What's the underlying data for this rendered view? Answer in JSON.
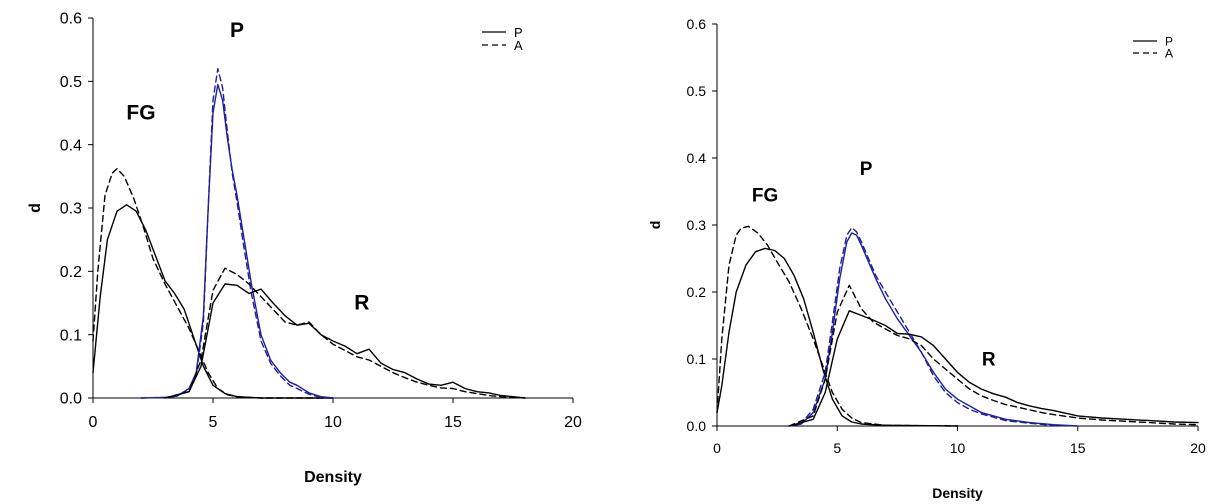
{
  "chart_data": [
    {
      "type": "line",
      "xlabel": "Density",
      "ylabel": "d",
      "xlim": [
        0,
        20
      ],
      "ylim": [
        0,
        0.6
      ],
      "xticks": [
        "0",
        "5",
        "10",
        "15",
        "20"
      ],
      "yticks": [
        "0.0",
        "0.1",
        "0.2",
        "0.3",
        "0.4",
        "0.5",
        "0.6"
      ],
      "grid": false,
      "legend_position": "top-right",
      "legend": [
        {
          "label": "P",
          "style": "solid"
        },
        {
          "label": "A",
          "style": "dashed"
        }
      ],
      "annotations": [
        {
          "text": "FG",
          "x": 2.0,
          "y": 0.44
        },
        {
          "text": "P",
          "x": 6.0,
          "y": 0.57
        },
        {
          "text": "R",
          "x": 11.2,
          "y": 0.14
        }
      ],
      "series": [
        {
          "group": "FG",
          "style": "solid",
          "color": "#000000",
          "x": [
            0,
            0.3,
            0.6,
            1.0,
            1.4,
            1.8,
            2.2,
            2.6,
            3.0,
            3.4,
            3.8,
            4.2,
            4.6,
            5.0,
            5.5,
            6.0,
            7.0,
            10.0
          ],
          "y": [
            0.04,
            0.16,
            0.25,
            0.295,
            0.305,
            0.295,
            0.265,
            0.225,
            0.185,
            0.165,
            0.14,
            0.095,
            0.05,
            0.02,
            0.007,
            0.002,
            0.0,
            0.0
          ]
        },
        {
          "group": "FG",
          "style": "dashed",
          "color": "#000000",
          "x": [
            0,
            0.2,
            0.5,
            0.8,
            1.0,
            1.3,
            1.7,
            2.1,
            2.5,
            3.0,
            3.5,
            4.0,
            4.4,
            4.8,
            5.2,
            5.6,
            6.0,
            7.0,
            10.0
          ],
          "y": [
            0.09,
            0.2,
            0.32,
            0.355,
            0.362,
            0.35,
            0.315,
            0.27,
            0.22,
            0.18,
            0.145,
            0.11,
            0.075,
            0.04,
            0.015,
            0.005,
            0.002,
            0.0,
            0.0
          ]
        },
        {
          "group": "P",
          "style": "solid",
          "color": "#1f1f9e",
          "x": [
            2.0,
            3.0,
            3.5,
            4.0,
            4.3,
            4.6,
            4.8,
            5.0,
            5.2,
            5.4,
            5.6,
            5.8,
            6.0,
            6.3,
            6.6,
            7.0,
            7.4,
            7.8,
            8.2,
            8.5,
            9.0,
            9.5,
            10.0
          ],
          "y": [
            0.0,
            0.001,
            0.003,
            0.015,
            0.04,
            0.13,
            0.3,
            0.45,
            0.495,
            0.47,
            0.41,
            0.36,
            0.32,
            0.25,
            0.18,
            0.1,
            0.06,
            0.04,
            0.025,
            0.02,
            0.008,
            0.002,
            0.0
          ]
        },
        {
          "group": "P",
          "style": "dashed",
          "color": "#1f1f9e",
          "x": [
            2.0,
            3.0,
            3.5,
            4.0,
            4.3,
            4.6,
            4.8,
            5.0,
            5.2,
            5.4,
            5.6,
            5.8,
            6.0,
            6.3,
            6.6,
            7.0,
            7.4,
            7.8,
            8.2,
            8.5,
            9.0,
            9.5,
            10.0
          ],
          "y": [
            0.0,
            0.001,
            0.003,
            0.013,
            0.035,
            0.12,
            0.3,
            0.47,
            0.52,
            0.49,
            0.42,
            0.355,
            0.31,
            0.235,
            0.165,
            0.09,
            0.055,
            0.035,
            0.02,
            0.015,
            0.006,
            0.001,
            0.0
          ]
        },
        {
          "group": "R",
          "style": "solid",
          "color": "#000000",
          "x": [
            3.0,
            4.0,
            4.5,
            5.0,
            5.5,
            6.0,
            6.5,
            7.0,
            7.5,
            8.0,
            8.5,
            9.0,
            9.5,
            10.0,
            10.5,
            11.0,
            11.5,
            12.0,
            12.5,
            13.0,
            13.5,
            14.0,
            14.5,
            15.0,
            15.5,
            16.0,
            16.5,
            17.0,
            17.5,
            18.0
          ],
          "y": [
            0.0,
            0.01,
            0.05,
            0.15,
            0.18,
            0.178,
            0.165,
            0.172,
            0.15,
            0.13,
            0.115,
            0.118,
            0.1,
            0.09,
            0.082,
            0.07,
            0.077,
            0.055,
            0.045,
            0.04,
            0.03,
            0.022,
            0.02,
            0.025,
            0.015,
            0.01,
            0.008,
            0.004,
            0.002,
            0.0
          ]
        },
        {
          "group": "R",
          "style": "dashed",
          "color": "#000000",
          "x": [
            3.0,
            4.0,
            4.5,
            5.0,
            5.5,
            6.0,
            6.5,
            7.0,
            7.5,
            8.0,
            8.5,
            9.0,
            9.5,
            10.0,
            10.5,
            11.0,
            11.5,
            12.0,
            12.5,
            13.0,
            13.5,
            14.0,
            14.5,
            15.0,
            15.5,
            16.0,
            16.5,
            17.0,
            17.5,
            18.0
          ],
          "y": [
            0.0,
            0.01,
            0.06,
            0.17,
            0.205,
            0.195,
            0.18,
            0.16,
            0.14,
            0.12,
            0.115,
            0.12,
            0.1,
            0.085,
            0.075,
            0.065,
            0.06,
            0.05,
            0.04,
            0.032,
            0.025,
            0.02,
            0.016,
            0.015,
            0.01,
            0.007,
            0.004,
            0.002,
            0.001,
            0.0
          ]
        }
      ]
    },
    {
      "type": "line",
      "xlabel": "Density",
      "ylabel": "d",
      "xlim": [
        0,
        20
      ],
      "ylim": [
        0,
        0.6
      ],
      "xticks": [
        "0",
        "5",
        "10",
        "15",
        "20"
      ],
      "yticks": [
        "0.0",
        "0.1",
        "0.2",
        "0.3",
        "0.4",
        "0.5",
        "0.6"
      ],
      "grid": false,
      "legend_position": "top-right",
      "legend": [
        {
          "label": "P",
          "style": "solid"
        },
        {
          "label": "A",
          "style": "dashed"
        }
      ],
      "annotations": [
        {
          "text": "FG",
          "x": 2.0,
          "y": 0.335
        },
        {
          "text": "P",
          "x": 6.2,
          "y": 0.375
        },
        {
          "text": "R",
          "x": 11.3,
          "y": 0.09
        }
      ],
      "series": [
        {
          "group": "FG",
          "style": "solid",
          "color": "#000000",
          "x": [
            0,
            0.2,
            0.5,
            0.8,
            1.2,
            1.6,
            2.0,
            2.4,
            2.8,
            3.2,
            3.6,
            4.0,
            4.4,
            4.8,
            5.2,
            5.6,
            6.0,
            7.0,
            10.0
          ],
          "y": [
            0.02,
            0.06,
            0.14,
            0.2,
            0.24,
            0.26,
            0.265,
            0.262,
            0.25,
            0.225,
            0.19,
            0.14,
            0.085,
            0.04,
            0.015,
            0.006,
            0.003,
            0.001,
            0.0
          ]
        },
        {
          "group": "FG",
          "style": "dashed",
          "color": "#000000",
          "x": [
            0,
            0.2,
            0.5,
            0.8,
            1.0,
            1.3,
            1.7,
            2.1,
            2.5,
            3.0,
            3.5,
            4.0,
            4.4,
            4.8,
            5.2,
            5.6,
            6.0,
            7.0,
            10.0
          ],
          "y": [
            0.02,
            0.13,
            0.24,
            0.285,
            0.295,
            0.298,
            0.288,
            0.27,
            0.245,
            0.215,
            0.175,
            0.13,
            0.09,
            0.05,
            0.025,
            0.012,
            0.005,
            0.001,
            0.0
          ]
        },
        {
          "group": "P",
          "style": "solid",
          "color": "#1f1f9e",
          "x": [
            3.0,
            3.5,
            4.0,
            4.5,
            4.8,
            5.1,
            5.4,
            5.6,
            5.8,
            6.0,
            6.3,
            6.6,
            7.0,
            7.5,
            8.0,
            8.5,
            9.0,
            9.5,
            10.0,
            10.5,
            11.0,
            12.0,
            13.0,
            14.0,
            15.0
          ],
          "y": [
            0.0,
            0.003,
            0.02,
            0.07,
            0.14,
            0.22,
            0.275,
            0.288,
            0.285,
            0.27,
            0.245,
            0.22,
            0.19,
            0.16,
            0.135,
            0.11,
            0.08,
            0.055,
            0.04,
            0.03,
            0.02,
            0.01,
            0.005,
            0.002,
            0.0
          ]
        },
        {
          "group": "P",
          "style": "dashed",
          "color": "#1f1f9e",
          "x": [
            3.0,
            3.5,
            4.0,
            4.5,
            4.8,
            5.1,
            5.4,
            5.6,
            5.8,
            6.0,
            6.3,
            6.6,
            7.0,
            7.5,
            8.0,
            8.5,
            9.0,
            9.5,
            10.0,
            10.5,
            11.0,
            12.0,
            13.0,
            14.0,
            15.0
          ],
          "y": [
            0.0,
            0.004,
            0.025,
            0.08,
            0.155,
            0.235,
            0.285,
            0.296,
            0.29,
            0.275,
            0.25,
            0.225,
            0.2,
            0.17,
            0.14,
            0.11,
            0.075,
            0.05,
            0.035,
            0.025,
            0.018,
            0.008,
            0.004,
            0.001,
            0.0
          ]
        },
        {
          "group": "R",
          "style": "solid",
          "color": "#000000",
          "x": [
            3.0,
            4.0,
            4.5,
            5.0,
            5.5,
            6.0,
            6.5,
            7.0,
            7.5,
            8.0,
            8.5,
            9.0,
            9.5,
            10.0,
            10.5,
            11.0,
            11.5,
            12.0,
            12.5,
            13.0,
            13.5,
            14.0,
            15.0,
            16.0,
            17.0,
            18.0,
            19.0,
            20.0
          ],
          "y": [
            0.0,
            0.01,
            0.05,
            0.13,
            0.172,
            0.165,
            0.158,
            0.15,
            0.138,
            0.137,
            0.133,
            0.12,
            0.1,
            0.08,
            0.065,
            0.055,
            0.048,
            0.043,
            0.035,
            0.03,
            0.026,
            0.023,
            0.015,
            0.012,
            0.01,
            0.008,
            0.006,
            0.005
          ]
        },
        {
          "group": "R",
          "style": "dashed",
          "color": "#000000",
          "x": [
            3.0,
            4.0,
            4.5,
            5.0,
            5.5,
            6.0,
            6.5,
            7.0,
            7.5,
            8.0,
            8.5,
            9.0,
            9.5,
            10.0,
            10.5,
            11.0,
            11.5,
            12.0,
            12.5,
            13.0,
            13.5,
            14.0,
            15.0,
            16.0,
            17.0,
            18.0,
            19.0,
            20.0
          ],
          "y": [
            0.0,
            0.015,
            0.07,
            0.17,
            0.21,
            0.175,
            0.155,
            0.145,
            0.135,
            0.13,
            0.12,
            0.1,
            0.085,
            0.07,
            0.055,
            0.045,
            0.038,
            0.032,
            0.028,
            0.024,
            0.02,
            0.017,
            0.012,
            0.009,
            0.007,
            0.005,
            0.003,
            0.002
          ]
        }
      ]
    }
  ]
}
